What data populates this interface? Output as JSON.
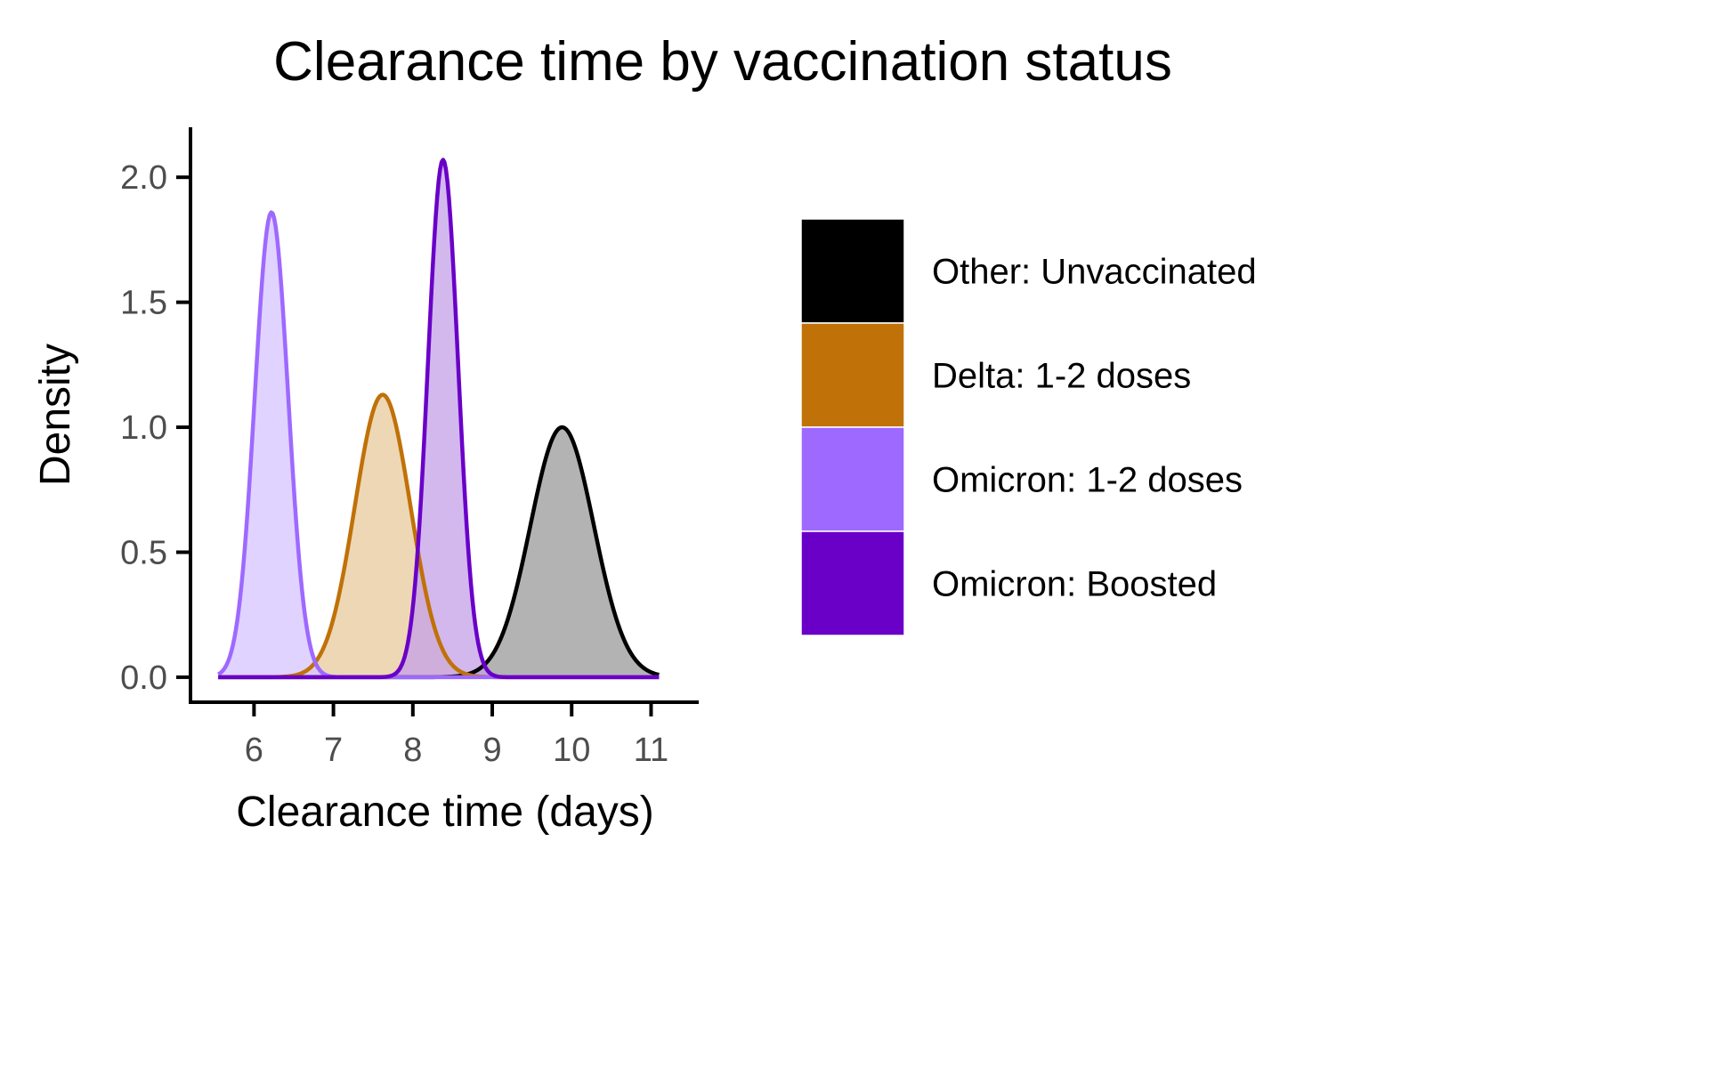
{
  "chart_data": {
    "type": "area",
    "title": "Clearance time by vaccination status",
    "xlabel": "Clearance time (days)",
    "ylabel": "Density",
    "xlim": [
      5.2,
      11.6
    ],
    "ylim": [
      -0.1,
      2.2
    ],
    "x_ticks": [
      6,
      7,
      8,
      9,
      10,
      11
    ],
    "y_ticks": [
      0.0,
      0.5,
      1.0,
      1.5,
      2.0
    ],
    "y_tick_labels": [
      "0.0",
      "0.5",
      "1.0",
      "1.5",
      "2.0"
    ],
    "x_range": [
      5.55,
      11.1
    ],
    "grid": false,
    "legend_position": "right",
    "series": [
      {
        "name": "Other: Unvaccinated",
        "color": "#000000",
        "fill": "#999999",
        "mean": 9.88,
        "sd": 0.4,
        "peak": 1.0
      },
      {
        "name": "Delta: 1-2 doses",
        "color": "#C07107",
        "fill": "#E8C99C",
        "mean": 7.62,
        "sd": 0.35,
        "peak": 1.13
      },
      {
        "name": "Omicron: 1-2 doses",
        "color": "#9E69FF",
        "fill": "#D6C4FF",
        "mean": 6.22,
        "sd": 0.21,
        "peak": 1.86
      },
      {
        "name": "Omicron: Boosted",
        "color": "#6A00C8",
        "fill": "#C4A0E8",
        "mean": 8.38,
        "sd": 0.19,
        "peak": 2.07
      }
    ]
  }
}
